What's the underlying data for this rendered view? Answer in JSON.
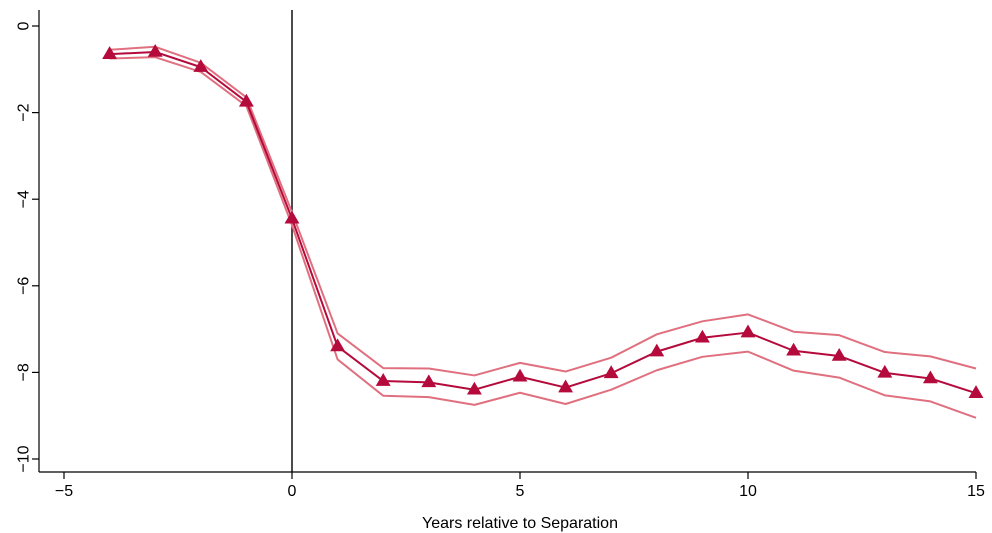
{
  "chart_data": {
    "type": "line",
    "title": "",
    "xlabel": "Years relative to Separation",
    "ylabel": "",
    "xlim": [
      -5,
      15
    ],
    "ylim": [
      -10,
      0
    ],
    "x_ticks": [
      -5,
      0,
      5,
      10,
      15
    ],
    "x_tick_labels": [
      "−5",
      "0",
      "5",
      "10",
      "15"
    ],
    "y_ticks": [
      0,
      -2,
      -4,
      -6,
      -8,
      -10
    ],
    "y_tick_labels": [
      "0",
      "−2",
      "−4",
      "−6",
      "−8",
      "−10"
    ],
    "grid": false,
    "reference_line": {
      "axis": "x",
      "value": 0
    },
    "x": [
      -4,
      -3,
      -2,
      -1,
      0,
      1,
      2,
      3,
      4,
      5,
      6,
      7,
      8,
      9,
      10,
      11,
      12,
      13,
      14,
      15
    ],
    "series": [
      {
        "role": "estimate",
        "color": "#b40a3c",
        "marker": "triangle",
        "values": [
          -0.65,
          -0.6,
          -0.95,
          -1.75,
          -4.45,
          -7.4,
          -8.2,
          -8.23,
          -8.4,
          -8.1,
          -8.35,
          -8.02,
          -7.52,
          -7.2,
          -7.08,
          -7.5,
          -7.62,
          -8.01,
          -8.14,
          -8.48
        ]
      },
      {
        "role": "upper-ci",
        "color": "#e0707f",
        "marker": "none",
        "values": [
          -0.55,
          -0.48,
          -0.85,
          -1.65,
          -4.3,
          -7.1,
          -7.9,
          -7.91,
          -8.07,
          -7.78,
          -7.98,
          -7.66,
          -7.12,
          -6.82,
          -6.66,
          -7.06,
          -7.14,
          -7.53,
          -7.63,
          -7.91
        ]
      },
      {
        "role": "lower-ci",
        "color": "#e0707f",
        "marker": "none",
        "values": [
          -0.75,
          -0.72,
          -1.06,
          -1.85,
          -4.6,
          -7.7,
          -8.54,
          -8.57,
          -8.75,
          -8.47,
          -8.73,
          -8.4,
          -7.95,
          -7.64,
          -7.52,
          -7.96,
          -8.12,
          -8.53,
          -8.67,
          -9.05
        ]
      }
    ]
  }
}
